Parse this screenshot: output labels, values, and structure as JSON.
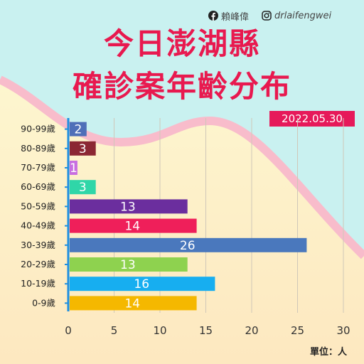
{
  "header": {
    "facebook_name": "賴峰偉",
    "instagram_handle": "drlaifengwei",
    "title_line1": "今日澎湖縣",
    "title_line2": "確診案年齡分布",
    "date": "2022.05.30"
  },
  "unit_label": "單位：人",
  "colors": {
    "title": "#e8194f",
    "date_bg": "#e6195a",
    "axis": "#1e8fe0",
    "bg_top": "#c9f1f0",
    "bg_bottom": "#fdf0c8",
    "wave": "#f8bccb"
  },
  "chart_data": {
    "type": "bar",
    "orientation": "horizontal",
    "categories": [
      "90-99歲",
      "80-89歲",
      "70-79歲",
      "60-69歲",
      "50-59歲",
      "40-49歲",
      "30-39歲",
      "20-29歲",
      "10-19歲",
      "0-9歲"
    ],
    "values": [
      2,
      3,
      1,
      3,
      13,
      14,
      26,
      13,
      16,
      14
    ],
    "bar_colors": [
      "#4f6fb8",
      "#8b2733",
      "#c86ee0",
      "#2fd6a8",
      "#6b2e9e",
      "#ef1f5a",
      "#4a78bd",
      "#8ed24f",
      "#17aef0",
      "#f5b800"
    ],
    "xticks": [
      "0",
      "5",
      "10",
      "15",
      "20",
      "25",
      "30"
    ],
    "xlim": [
      0,
      30
    ],
    "grid": "vertical",
    "data_labels": true
  }
}
